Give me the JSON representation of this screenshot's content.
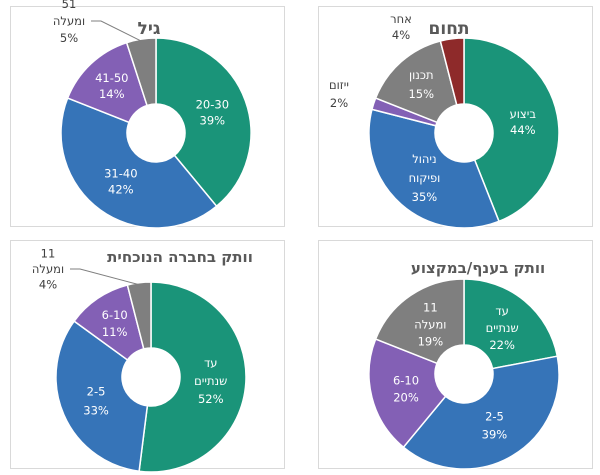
{
  "chart_data": [
    {
      "type": "pie",
      "donut": true,
      "title": "גיל",
      "categories": [
        "20-30",
        "31-40",
        "41-50",
        "51 ומעלה"
      ],
      "values": [
        39,
        42,
        14,
        5
      ],
      "value_labels": [
        "39%",
        "42%",
        "14%",
        "5%"
      ],
      "colors": [
        "#1a9479",
        "#3674b8",
        "#8360b5",
        "#7f7f7f"
      ],
      "label_lines": [
        [
          "20-30",
          "39%"
        ],
        [
          "31-40",
          "42%"
        ],
        [
          "41-50",
          "14%"
        ],
        [
          "51",
          "ומעלה",
          "5%"
        ]
      ]
    },
    {
      "type": "pie",
      "donut": true,
      "title": "תחום",
      "categories": [
        "ביצוע",
        "ניהול ופיקוח",
        "ייזום",
        "תכנון",
        "אחר"
      ],
      "values": [
        44,
        35,
        2,
        15,
        4
      ],
      "value_labels": [
        "44%",
        "35%",
        "2%",
        "15%",
        "4%"
      ],
      "colors": [
        "#1a9479",
        "#3674b8",
        "#8360b5",
        "#7f7f7f",
        "#8e2a2a"
      ],
      "label_lines": [
        [
          "ביצוע",
          "44%"
        ],
        [
          "ניהול",
          "ופיקוח",
          "35%"
        ],
        [
          "ייזום",
          "2%"
        ],
        [
          "תכנון",
          "15%"
        ],
        [
          "אחר",
          "4%"
        ]
      ]
    },
    {
      "type": "pie",
      "donut": true,
      "title": "וותק בחברה הנוכחית",
      "categories": [
        "עד שנתיים",
        "2-5",
        "6-10",
        "11 ומעלה"
      ],
      "values": [
        52,
        33,
        11,
        4
      ],
      "value_labels": [
        "52%",
        "33%",
        "11%",
        "4%"
      ],
      "colors": [
        "#1a9479",
        "#3674b8",
        "#8360b5",
        "#7f7f7f"
      ],
      "label_lines": [
        [
          "עד",
          "שנתיים",
          "52%"
        ],
        [
          "2-5",
          "33%"
        ],
        [
          "6-10",
          "11%"
        ],
        [
          "11",
          "ומעלה",
          "4%"
        ]
      ]
    },
    {
      "type": "pie",
      "donut": true,
      "title": "וותק בענף/במקצוע",
      "categories": [
        "עד שנתיים",
        "2-5",
        "6-10",
        "11 ומעלה"
      ],
      "values": [
        22,
        39,
        20,
        19
      ],
      "value_labels": [
        "22%",
        "39%",
        "20%",
        "19%"
      ],
      "colors": [
        "#1a9479",
        "#3674b8",
        "#8360b5",
        "#7f7f7f"
      ],
      "label_lines": [
        [
          "עד",
          "שנתיים",
          "22%"
        ],
        [
          "2-5",
          "39%"
        ],
        [
          "6-10",
          "20%"
        ],
        [
          "11",
          "ומעלה",
          "19%"
        ]
      ]
    }
  ]
}
